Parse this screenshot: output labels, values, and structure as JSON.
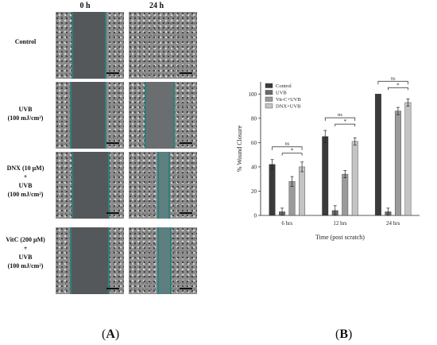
{
  "panelA": {
    "columns": [
      "0 h",
      "24 h"
    ],
    "rows": [
      {
        "label_lines": [
          "Control"
        ]
      },
      {
        "label_lines": [
          "UVB",
          "(100 mJ/cm²)"
        ]
      },
      {
        "label_lines": [
          "DNX (10 μM)",
          "+",
          "UVB",
          "(100 mJ/cm²)"
        ]
      },
      {
        "label_lines": [
          "VitC (200 μM)",
          "+",
          "UVB",
          "(100 mJ/cm²)"
        ]
      }
    ],
    "panel_label": "A"
  },
  "panelB": {
    "panel_label": "B"
  },
  "chart_data": {
    "type": "bar",
    "categories": [
      "6 hrs",
      "12 hrs",
      "24 hrs"
    ],
    "series": [
      {
        "name": "Control",
        "values": [
          42,
          65,
          100
        ],
        "errors": [
          4,
          5,
          0
        ],
        "color": "#3a3a3a"
      },
      {
        "name": "UVB",
        "values": [
          3,
          4,
          3
        ],
        "errors": [
          3,
          4,
          3
        ],
        "color": "#6b6b6b"
      },
      {
        "name": "Vit-C+UVB",
        "values": [
          28,
          34,
          86
        ],
        "errors": [
          4,
          3,
          3
        ],
        "color": "#9a9a9a"
      },
      {
        "name": "DNX+UVB",
        "values": [
          40,
          61,
          93
        ],
        "errors": [
          4,
          3,
          3
        ],
        "color": "#c4c4c4"
      }
    ],
    "xlabel": "Time (post scratch)",
    "ylabel": "% Wound Closure",
    "ylim": [
      0,
      110
    ],
    "yticks": [
      0,
      20,
      40,
      60,
      80,
      100
    ],
    "legend_position": "top-left",
    "grid": false,
    "annotations": [
      {
        "group": "6 hrs",
        "outer": "ns",
        "inner": "*"
      },
      {
        "group": "12 hrs",
        "outer": "ns",
        "inner": "*"
      },
      {
        "group": "24 hrs",
        "outer": "ns",
        "inner": "*"
      }
    ]
  }
}
